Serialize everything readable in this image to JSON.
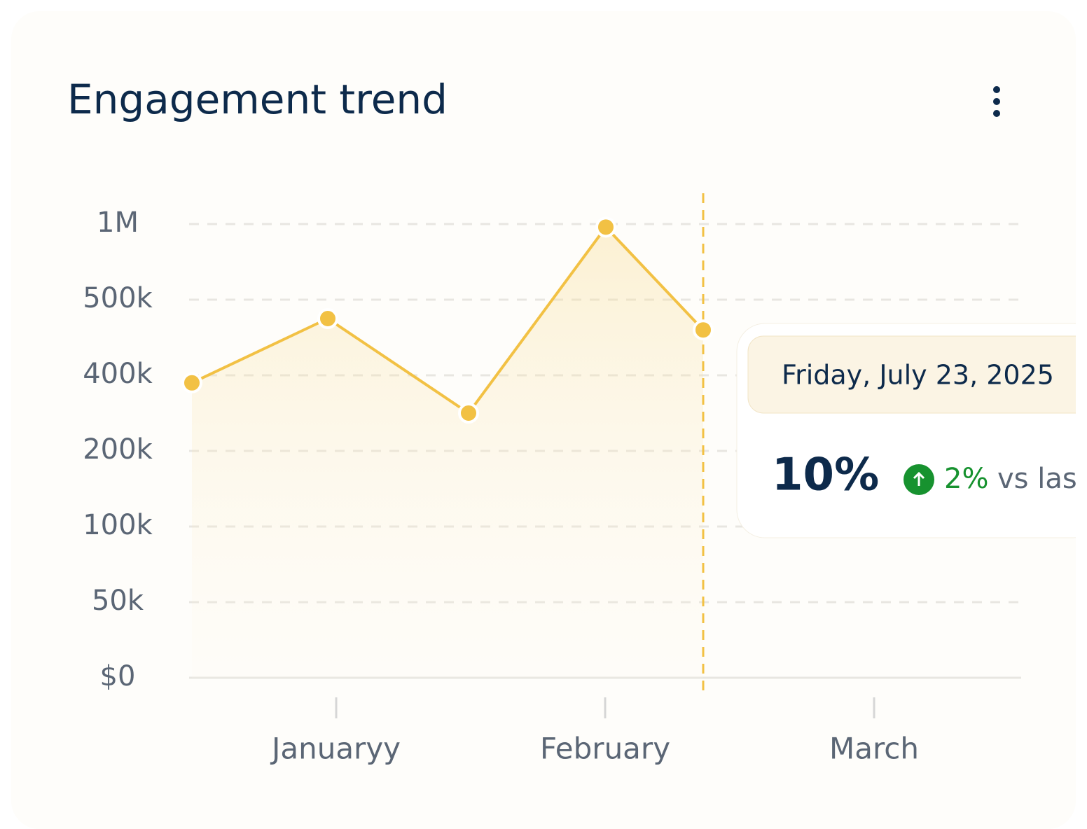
{
  "chart_data": {
    "type": "line",
    "title": "Engagement trend",
    "categories": [
      null,
      null,
      null,
      null,
      null
    ],
    "series": [
      {
        "name": null,
        "color": "#f2c144",
        "values": [
          380000,
          475000,
          300000,
          980000,
          460000
        ]
      }
    ],
    "x_axis_labels": [
      "Januaryy",
      "February",
      "March"
    ],
    "ylim": [
      0,
      1000000
    ],
    "yticks": [
      {
        "value": 0,
        "label": "$0"
      },
      {
        "value": 50000,
        "label": "50k"
      },
      {
        "value": 100000,
        "label": "100k"
      },
      {
        "value": 200000,
        "label": "200k"
      },
      {
        "value": 400000,
        "label": "400k"
      },
      {
        "value": 500000,
        "label": "500k"
      },
      {
        "value": 1000000,
        "label": "1M"
      }
    ],
    "grid": true,
    "tooltip": {
      "date": "Friday, July 23, 2025",
      "value": "10%",
      "change": "2%",
      "comparison": "vs last"
    }
  }
}
